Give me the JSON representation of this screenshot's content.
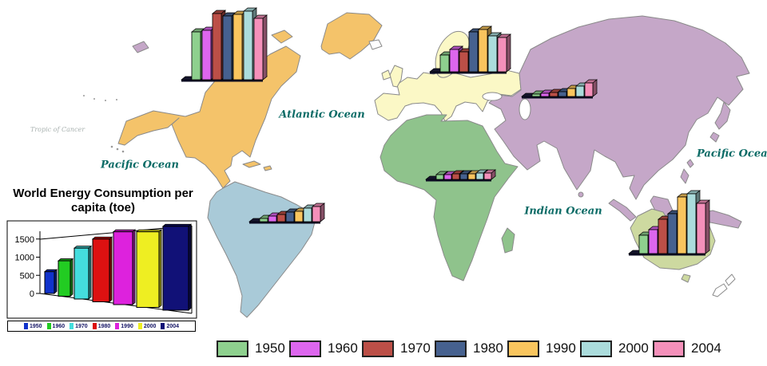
{
  "inset": {
    "title": "World Energy Consumption per capita (toe)"
  },
  "map_labels": {
    "atlantic": "Atlantic Ocean",
    "pacific_west": "Pacific Ocean",
    "pacific_east": "Pacific Ocean",
    "indian": "Indian Ocean",
    "tropic": "Tropic of Cancer"
  },
  "legend": {
    "items": [
      {
        "year": "1950",
        "color": "#8ed08e"
      },
      {
        "year": "1960",
        "color": "#dd66ee"
      },
      {
        "year": "1970",
        "color": "#bc4f47"
      },
      {
        "year": "1980",
        "color": "#46618f"
      },
      {
        "year": "1990",
        "color": "#f9c55e"
      },
      {
        "year": "2000",
        "color": "#abdcdc"
      },
      {
        "year": "2004",
        "color": "#f490ba"
      }
    ]
  },
  "map_colors": {
    "north_america": "#f4c36a",
    "south_america": "#a9cad8",
    "europe": "#fbf8c6",
    "africa": "#8fc38c",
    "asia": "#c5a7c8",
    "australia": "#cdd9a0",
    "ocean_label": "#0b6b66",
    "coastline": "#8a8a8a"
  },
  "chart_data": [
    {
      "id": "world",
      "type": "bar",
      "title": "World Energy Consumption per capita (toe)",
      "categories": [
        "1950",
        "1960",
        "1970",
        "1980",
        "1990",
        "2000",
        "2004"
      ],
      "values": [
        600,
        900,
        1250,
        1500,
        1700,
        1700,
        1850
      ],
      "yticks": [
        0,
        500,
        1000,
        1500
      ],
      "ylim": [
        0,
        2000
      ],
      "ylabel": "",
      "xlabel": "",
      "colors": [
        "#1133cc",
        "#22cc22",
        "#44dddd",
        "#dd1111",
        "#dd22dd",
        "#eeee22",
        "#111177"
      ],
      "note": "values estimated from 3D axis (0-1500 scale)"
    },
    {
      "id": "north-america",
      "type": "bar",
      "region": "North America",
      "categories": [
        "1950",
        "1960",
        "1970",
        "1980",
        "1990",
        "2000",
        "2004"
      ],
      "relative_heights": [
        60,
        62,
        83,
        80,
        82,
        86,
        77
      ],
      "unit": "relative bar height (no axis shown)"
    },
    {
      "id": "europe",
      "type": "bar",
      "region": "Europe",
      "categories": [
        "1950",
        "1960",
        "1970",
        "1980",
        "1990",
        "2000",
        "2004"
      ],
      "relative_heights": [
        21,
        28,
        25,
        50,
        53,
        45,
        43
      ],
      "unit": "relative bar height (no axis shown)"
    },
    {
      "id": "asia",
      "type": "bar",
      "region": "Asia",
      "categories": [
        "1950",
        "1960",
        "1970",
        "1980",
        "1990",
        "2000",
        "2004"
      ],
      "relative_heights": [
        3,
        4,
        5,
        6,
        10,
        13,
        17
      ],
      "unit": "relative bar height (no axis shown)"
    },
    {
      "id": "africa",
      "type": "bar",
      "region": "Africa",
      "categories": [
        "1950",
        "1960",
        "1970",
        "1980",
        "1990",
        "2000",
        "2004"
      ],
      "relative_heights": [
        6,
        6,
        7,
        7,
        7,
        8,
        8
      ],
      "unit": "relative bar height (no axis shown)"
    },
    {
      "id": "south-america",
      "type": "bar",
      "region": "South America",
      "categories": [
        "1950",
        "1960",
        "1970",
        "1980",
        "1990",
        "2000",
        "2004"
      ],
      "relative_heights": [
        4,
        7,
        9,
        12,
        13,
        17,
        19
      ],
      "unit": "relative bar height (no axis shown)"
    },
    {
      "id": "australia",
      "type": "bar",
      "region": "Australia",
      "categories": [
        "1950",
        "1960",
        "1970",
        "1980",
        "1990",
        "2000",
        "2004"
      ],
      "relative_heights": [
        23,
        30,
        43,
        50,
        71,
        75,
        63
      ],
      "unit": "relative bar height (no axis shown)"
    }
  ]
}
